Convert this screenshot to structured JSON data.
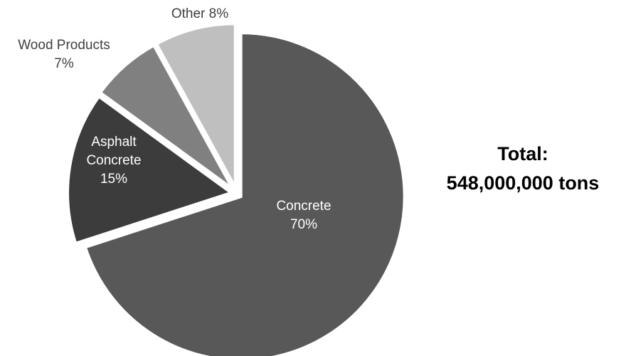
{
  "chart_data": {
    "type": "pie",
    "title": "",
    "slices": [
      {
        "label_lines": [
          "Concrete",
          "70%"
        ],
        "value": 70,
        "color": "#585858",
        "label_color": "#ffffff"
      },
      {
        "label_lines": [
          "Asphalt",
          "Concrete",
          "15%"
        ],
        "value": 15,
        "color": "#3c3c3c",
        "label_color": "#ffffff"
      },
      {
        "label_lines": [
          "Wood Products",
          "7%"
        ],
        "value": 7,
        "color": "#808080",
        "label_color": "#404040"
      },
      {
        "label_lines": [
          "Other 8%"
        ],
        "value": 8,
        "color": "#bfbfbf",
        "label_color": "#404040"
      }
    ],
    "total_label": "Total:",
    "total_value": "548,000,000 tons"
  }
}
